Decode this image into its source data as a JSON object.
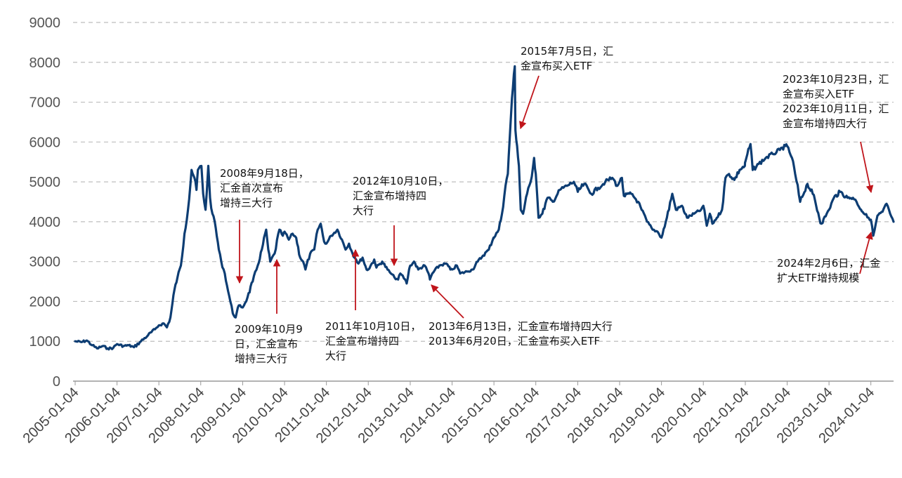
{
  "chart_data": {
    "type": "line",
    "title": "",
    "xlabel": "",
    "ylabel": "",
    "ylim": [
      0,
      9000
    ],
    "y_ticks": [
      "0",
      "1000",
      "2000",
      "3000",
      "4000",
      "5000",
      "6000",
      "7000",
      "8000",
      "9000"
    ],
    "x_ticks": [
      "2005-01-04",
      "2006-01-04",
      "2007-01-04",
      "2008-01-04",
      "2009-01-04",
      "2010-01-04",
      "2011-01-04",
      "2012-01-04",
      "2013-01-04",
      "2014-01-04",
      "2015-01-04",
      "2016-01-04",
      "2017-01-04",
      "2018-01-04",
      "2019-01-04",
      "2020-01-04",
      "2021-01-04",
      "2022-01-04",
      "2023-01-04",
      "2024-01-04"
    ],
    "grid": true,
    "colors": {
      "series": "#0d3d73",
      "arrow": "#c0151b",
      "grid": "#bdbdbd"
    },
    "series": [
      {
        "values": [
          [
            "2005-01-04",
            1000
          ],
          [
            "2005-03-01",
            980
          ],
          [
            "2005-04-15",
            1020
          ],
          [
            "2005-06-01",
            900
          ],
          [
            "2005-07-15",
            820
          ],
          [
            "2005-09-01",
            880
          ],
          [
            "2005-10-15",
            820
          ],
          [
            "2005-12-01",
            830
          ],
          [
            "2006-01-04",
            930
          ],
          [
            "2006-03-01",
            880
          ],
          [
            "2006-04-15",
            900
          ],
          [
            "2006-06-01",
            850
          ],
          [
            "2006-08-01",
            1000
          ],
          [
            "2006-10-01",
            1150
          ],
          [
            "2006-12-01",
            1300
          ],
          [
            "2007-01-04",
            1400
          ],
          [
            "2007-02-15",
            1450
          ],
          [
            "2007-03-15",
            1350
          ],
          [
            "2007-04-15",
            1600
          ],
          [
            "2007-05-20",
            2300
          ],
          [
            "2007-06-15",
            2600
          ],
          [
            "2007-07-15",
            2900
          ],
          [
            "2007-08-15",
            3700
          ],
          [
            "2007-09-15",
            4300
          ],
          [
            "2007-10-16",
            5300
          ],
          [
            "2007-11-10",
            5100
          ],
          [
            "2007-11-28",
            4800
          ],
          [
            "2007-12-10",
            5300
          ],
          [
            "2008-01-10",
            5400
          ],
          [
            "2008-01-25",
            4700
          ],
          [
            "2008-02-15",
            4300
          ],
          [
            "2008-03-10",
            5400
          ],
          [
            "2008-03-25",
            4600
          ],
          [
            "2008-04-15",
            4200
          ],
          [
            "2008-05-05",
            4000
          ],
          [
            "2008-06-10",
            3300
          ],
          [
            "2008-07-01",
            3000
          ],
          [
            "2008-08-01",
            2700
          ],
          [
            "2008-08-20",
            2400
          ],
          [
            "2008-09-18",
            2000
          ],
          [
            "2008-10-10",
            1700
          ],
          [
            "2008-11-04",
            1600
          ],
          [
            "2008-12-01",
            1900
          ],
          [
            "2009-01-04",
            1850
          ],
          [
            "2009-02-15",
            2100
          ],
          [
            "2009-04-01",
            2500
          ],
          [
            "2009-05-15",
            2900
          ],
          [
            "2009-06-20",
            3300
          ],
          [
            "2009-07-28",
            3800
          ],
          [
            "2009-08-15",
            3300
          ],
          [
            "2009-09-01",
            3000
          ],
          [
            "2009-10-09",
            3200
          ],
          [
            "2009-11-20",
            3800
          ],
          [
            "2009-12-20",
            3650
          ],
          [
            "2010-01-04",
            3750
          ],
          [
            "2010-02-10",
            3550
          ],
          [
            "2010-03-15",
            3700
          ],
          [
            "2010-04-15",
            3600
          ],
          [
            "2010-05-20",
            3100
          ],
          [
            "2010-06-15",
            3000
          ],
          [
            "2010-07-05",
            2800
          ],
          [
            "2010-08-15",
            3200
          ],
          [
            "2010-09-20",
            3300
          ],
          [
            "2010-10-20",
            3800
          ],
          [
            "2010-11-15",
            3950
          ],
          [
            "2010-12-15",
            3500
          ],
          [
            "2011-01-04",
            3450
          ],
          [
            "2011-02-15",
            3650
          ],
          [
            "2011-04-10",
            3800
          ],
          [
            "2011-05-20",
            3550
          ],
          [
            "2011-06-20",
            3300
          ],
          [
            "2011-07-20",
            3450
          ],
          [
            "2011-08-20",
            3200
          ],
          [
            "2011-09-20",
            3050
          ],
          [
            "2011-10-10",
            2950
          ],
          [
            "2011-11-15",
            3100
          ],
          [
            "2011-12-20",
            2800
          ],
          [
            "2012-01-04",
            2800
          ],
          [
            "2012-02-25",
            3050
          ],
          [
            "2012-03-15",
            2850
          ],
          [
            "2012-05-05",
            3000
          ],
          [
            "2012-06-20",
            2800
          ],
          [
            "2012-07-20",
            2700
          ],
          [
            "2012-08-20",
            2600
          ],
          [
            "2012-09-20",
            2550
          ],
          [
            "2012-10-10",
            2700
          ],
          [
            "2012-11-20",
            2550
          ],
          [
            "2012-12-04",
            2450
          ],
          [
            "2012-12-25",
            2800
          ],
          [
            "2013-01-04",
            2900
          ],
          [
            "2013-02-06",
            3000
          ],
          [
            "2013-03-15",
            2800
          ],
          [
            "2013-05-10",
            2900
          ],
          [
            "2013-06-13",
            2700
          ],
          [
            "2013-06-25",
            2550
          ],
          [
            "2013-07-15",
            2700
          ],
          [
            "2013-09-15",
            2900
          ],
          [
            "2013-11-15",
            2950
          ],
          [
            "2013-12-20",
            2800
          ],
          [
            "2014-01-04",
            2800
          ],
          [
            "2014-02-15",
            2900
          ],
          [
            "2014-03-15",
            2700
          ],
          [
            "2014-05-15",
            2750
          ],
          [
            "2014-07-01",
            2800
          ],
          [
            "2014-08-15",
            3000
          ],
          [
            "2014-10-01",
            3150
          ],
          [
            "2014-11-20",
            3300
          ],
          [
            "2014-12-31",
            3600
          ],
          [
            "2015-01-04",
            3600
          ],
          [
            "2015-02-15",
            3800
          ],
          [
            "2015-03-15",
            4200
          ],
          [
            "2015-04-15",
            4900
          ],
          [
            "2015-05-05",
            5200
          ],
          [
            "2015-05-20",
            6000
          ],
          [
            "2015-06-10",
            7100
          ],
          [
            "2015-07-05",
            7900
          ],
          [
            "2015-07-10",
            6300
          ],
          [
            "2015-07-25",
            5900
          ],
          [
            "2015-08-10",
            5400
          ],
          [
            "2015-08-26",
            4300
          ],
          [
            "2015-09-15",
            4200
          ],
          [
            "2015-10-20",
            4700
          ],
          [
            "2015-11-20",
            5000
          ],
          [
            "2015-12-20",
            5600
          ],
          [
            "2016-01-04",
            5200
          ],
          [
            "2016-01-28",
            4100
          ],
          [
            "2016-03-01",
            4200
          ],
          [
            "2016-04-15",
            4600
          ],
          [
            "2016-06-01",
            4500
          ],
          [
            "2016-08-01",
            4800
          ],
          [
            "2016-10-01",
            4900
          ],
          [
            "2016-12-01",
            5000
          ],
          [
            "2017-01-04",
            4750
          ],
          [
            "2017-03-01",
            4950
          ],
          [
            "2017-05-01",
            4700
          ],
          [
            "2017-07-01",
            4850
          ],
          [
            "2017-09-01",
            5000
          ],
          [
            "2017-11-01",
            5100
          ],
          [
            "2017-12-15",
            4900
          ],
          [
            "2018-01-04",
            5000
          ],
          [
            "2018-01-24",
            5100
          ],
          [
            "2018-02-10",
            4650
          ],
          [
            "2018-04-15",
            4700
          ],
          [
            "2018-06-15",
            4500
          ],
          [
            "2018-07-15",
            4300
          ],
          [
            "2018-09-01",
            4000
          ],
          [
            "2018-10-19",
            3800
          ],
          [
            "2018-12-01",
            3750
          ],
          [
            "2019-01-04",
            3600
          ],
          [
            "2019-02-20",
            4100
          ],
          [
            "2019-04-08",
            4700
          ],
          [
            "2019-05-10",
            4300
          ],
          [
            "2019-07-01",
            4400
          ],
          [
            "2019-08-15",
            4100
          ],
          [
            "2019-10-15",
            4200
          ],
          [
            "2019-12-15",
            4300
          ],
          [
            "2020-01-04",
            4400
          ],
          [
            "2020-02-03",
            3900
          ],
          [
            "2020-03-01",
            4200
          ],
          [
            "2020-03-23",
            3950
          ],
          [
            "2020-05-01",
            4100
          ],
          [
            "2020-06-15",
            4300
          ],
          [
            "2020-07-15",
            5100
          ],
          [
            "2020-08-15",
            5200
          ],
          [
            "2020-10-01",
            5050
          ],
          [
            "2020-11-15",
            5300
          ],
          [
            "2020-12-31",
            5400
          ],
          [
            "2021-01-04",
            5500
          ],
          [
            "2021-02-18",
            5950
          ],
          [
            "2021-03-10",
            5300
          ],
          [
            "2021-05-01",
            5450
          ],
          [
            "2021-07-01",
            5600
          ],
          [
            "2021-09-01",
            5700
          ],
          [
            "2021-11-01",
            5800
          ],
          [
            "2021-12-20",
            5900
          ],
          [
            "2022-01-04",
            5900
          ],
          [
            "2022-02-15",
            5600
          ],
          [
            "2022-03-15",
            5200
          ],
          [
            "2022-04-27",
            4500
          ],
          [
            "2022-06-30",
            4950
          ],
          [
            "2022-08-15",
            4700
          ],
          [
            "2022-10-31",
            3950
          ],
          [
            "2022-12-15",
            4200
          ],
          [
            "2023-01-04",
            4300
          ],
          [
            "2023-02-15",
            4600
          ],
          [
            "2023-04-10",
            4750
          ],
          [
            "2023-06-15",
            4600
          ],
          [
            "2023-08-01",
            4600
          ],
          [
            "2023-09-01",
            4500
          ],
          [
            "2023-10-11",
            4300
          ],
          [
            "2023-10-23",
            4250
          ],
          [
            "2023-12-15",
            4100
          ],
          [
            "2024-01-04",
            4050
          ],
          [
            "2024-01-25",
            3650
          ],
          [
            "2024-02-06",
            3800
          ],
          [
            "2024-03-01",
            4150
          ],
          [
            "2024-04-15",
            4250
          ],
          [
            "2024-05-20",
            4450
          ],
          [
            "2024-06-20",
            4200
          ],
          [
            "2024-07-20",
            4000
          ]
        ]
      }
    ],
    "annotations": [
      {
        "lines": [
          "2008年9月18日，",
          "汇金首次宣布",
          "增持三大行"
        ]
      },
      {
        "lines": [
          "2009年10月9",
          "日，汇金宣布",
          "增持三大行"
        ]
      },
      {
        "lines": [
          "2011年10月10日，",
          "汇金宣布增持四",
          "大行"
        ]
      },
      {
        "lines": [
          "2012年10月10日，",
          "汇金宣布增持四",
          "大行"
        ]
      },
      {
        "lines": [
          "2013年6月13日，汇金宣布增持四大行",
          "2013年6月20日，汇金宣布买入ETF"
        ]
      },
      {
        "lines": [
          "2015年7月5日，汇",
          "金宣布买入ETF"
        ]
      },
      {
        "lines": [
          "2023年10月23日，汇",
          "金宣布买入ETF",
          "2023年10月11日，汇",
          "金宣布增持四大行"
        ]
      },
      {
        "lines": [
          "2024年2月6日，汇金",
          "扩大ETF增持规模"
        ]
      }
    ]
  }
}
